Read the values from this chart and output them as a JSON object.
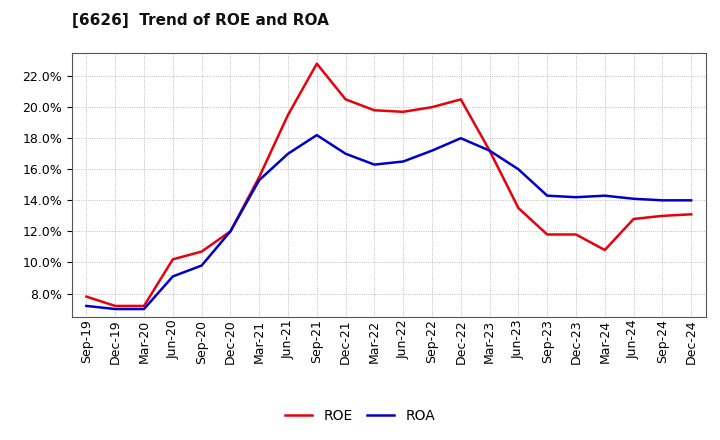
{
  "title": "[6626]  Trend of ROE and ROA",
  "x_labels": [
    "Sep-19",
    "Dec-19",
    "Mar-20",
    "Jun-20",
    "Sep-20",
    "Dec-20",
    "Mar-21",
    "Jun-21",
    "Sep-21",
    "Dec-21",
    "Mar-22",
    "Jun-22",
    "Sep-22",
    "Dec-22",
    "Mar-23",
    "Jun-23",
    "Sep-23",
    "Dec-23",
    "Mar-24",
    "Jun-24",
    "Sep-24",
    "Dec-24"
  ],
  "roe": [
    7.8,
    7.2,
    7.2,
    10.2,
    10.7,
    12.0,
    15.5,
    19.5,
    22.8,
    20.5,
    19.8,
    19.7,
    20.0,
    20.5,
    17.2,
    13.5,
    11.8,
    11.8,
    10.8,
    12.8,
    13.0,
    13.1
  ],
  "roa": [
    7.2,
    7.0,
    7.0,
    9.1,
    9.8,
    12.0,
    15.3,
    17.0,
    18.2,
    17.0,
    16.3,
    16.5,
    17.2,
    18.0,
    17.2,
    16.0,
    14.3,
    14.2,
    14.3,
    14.1,
    14.0,
    14.0
  ],
  "roe_color": "#e8000d",
  "roa_color": "#0000cc",
  "bg_color": "#ffffff",
  "plot_bg_color": "#ffffff",
  "grid_color": "#aaaaaa",
  "ylim": [
    6.5,
    23.5
  ],
  "yticks": [
    8.0,
    10.0,
    12.0,
    14.0,
    16.0,
    18.0,
    20.0,
    22.0
  ],
  "legend_roe": "ROE",
  "legend_roa": "ROA",
  "title_fontsize": 11,
  "tick_fontsize": 9,
  "line_width": 1.8
}
